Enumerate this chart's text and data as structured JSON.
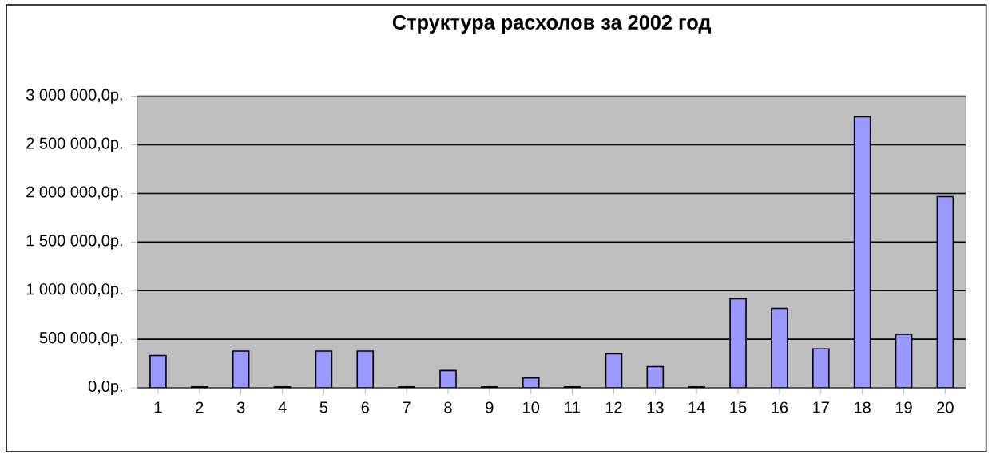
{
  "chart_data": {
    "type": "bar",
    "title": "Структура расхолов за 2002 год",
    "categories": [
      "1",
      "2",
      "3",
      "4",
      "5",
      "6",
      "7",
      "8",
      "9",
      "10",
      "11",
      "12",
      "13",
      "14",
      "15",
      "16",
      "17",
      "18",
      "19",
      "20"
    ],
    "values": [
      333000,
      10000,
      378000,
      10000,
      378000,
      378000,
      10000,
      178000,
      10000,
      100000,
      10000,
      350000,
      217000,
      10000,
      917000,
      817000,
      400000,
      2789000,
      550000,
      1967000
    ],
    "color": "#9999ff",
    "ylim": [
      0,
      3000000
    ],
    "yticks": [
      {
        "value": 0,
        "label": "0,0р."
      },
      {
        "value": 500000,
        "label": "500 000,0р."
      },
      {
        "value": 1000000,
        "label": "1 000 000,0р."
      },
      {
        "value": 1500000,
        "label": "1 500 000,0р."
      },
      {
        "value": 2000000,
        "label": "2 000 000,0р."
      },
      {
        "value": 2500000,
        "label": "2 500 000,0р."
      },
      {
        "value": 3000000,
        "label": "3 000 000,0р."
      }
    ],
    "grid": "y"
  }
}
